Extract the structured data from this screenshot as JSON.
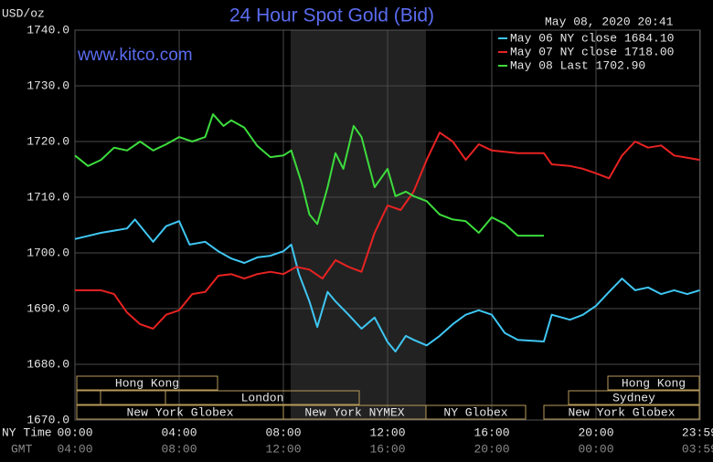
{
  "chart_data": {
    "type": "line",
    "title": "24 Hour Spot Gold (Bid)",
    "subtitle": "www.kitco.com",
    "y_label": "USD/oz",
    "timestamp": "May 08, 2020 20:41",
    "x_row_labels": [
      "NY Time",
      "GMT"
    ],
    "xlim": [
      0,
      24
    ],
    "xticks": [
      {
        "value": 0,
        "label": "00:00"
      },
      {
        "value": 4,
        "label": "04:00"
      },
      {
        "value": 8,
        "label": "08:00"
      },
      {
        "value": 12,
        "label": "12:00"
      },
      {
        "value": 16,
        "label": "16:00"
      },
      {
        "value": 20,
        "label": "20:00"
      },
      {
        "value": 23.98,
        "label": "23:59"
      }
    ],
    "gmt_tick_labels": [
      "04:00",
      "08:00",
      "12:00",
      "16:00",
      "20:00",
      "00:00",
      "03:59"
    ],
    "ylim": [
      1670,
      1740
    ],
    "yticks": [
      {
        "value": 1670,
        "label": "1670.0"
      },
      {
        "value": 1680,
        "label": "1680.0"
      },
      {
        "value": 1690,
        "label": "1690.0"
      },
      {
        "value": 1700,
        "label": "1700.0"
      },
      {
        "value": 1710,
        "label": "1710.0"
      },
      {
        "value": 1720,
        "label": "1720.0"
      },
      {
        "value": 1730,
        "label": "1730.0"
      },
      {
        "value": 1740,
        "label": "1740.0"
      }
    ],
    "grid": true,
    "legend": "top-right",
    "sessions": [
      "Hong Kong",
      "Hong Kong",
      "London",
      "Sydney",
      "New York Globex",
      "New York NYMEX",
      "NY Globex",
      "New York Globex"
    ],
    "series": [
      {
        "name": "May 06 NY close 1684.10",
        "color": "#3fc6f2",
        "x": [
          0,
          1,
          2,
          2.3,
          3,
          3.5,
          4,
          4.4,
          5,
          5.5,
          6,
          6.5,
          7,
          7.5,
          8,
          8.3,
          8.6,
          9,
          9.3,
          9.7,
          10,
          10.5,
          11,
          11.5,
          12,
          12.3,
          12.7,
          13,
          13.5,
          14,
          14.5,
          15,
          15.5,
          16,
          16.5,
          17,
          18,
          18.3,
          19,
          19.5,
          20,
          20.5,
          21,
          21.5,
          22,
          22.5,
          23,
          23.5,
          23.98
        ],
        "values": [
          1702.5,
          1703.6,
          1704.4,
          1706,
          1702,
          1704.8,
          1705.7,
          1701.5,
          1702,
          1700.3,
          1699,
          1698.2,
          1699.2,
          1699.5,
          1700.3,
          1701.5,
          1696.2,
          1691.3,
          1686.7,
          1693,
          1691.3,
          1688.9,
          1686.4,
          1688.4,
          1684,
          1682.3,
          1685.1,
          1684.4,
          1683.4,
          1685.1,
          1687.2,
          1688.9,
          1689.7,
          1688.9,
          1685.6,
          1684.4,
          1684.1,
          1688.9,
          1688,
          1688.9,
          1690.5,
          1693,
          1695.4,
          1693.3,
          1693.8,
          1692.6,
          1693.3,
          1692.6,
          1693.3
        ]
      },
      {
        "name": "May 07 NY close 1718.00",
        "color": "#e82222",
        "x": [
          0,
          1,
          1.5,
          2,
          2.5,
          3,
          3.5,
          4,
          4.5,
          5,
          5.5,
          6,
          6.5,
          7,
          7.5,
          8,
          8.5,
          9,
          9.5,
          10,
          10.5,
          11,
          11.5,
          12,
          12.5,
          13,
          13.5,
          14,
          14.5,
          15,
          15.5,
          16,
          17,
          18,
          18.3,
          19,
          19.5,
          20,
          20.5,
          21,
          21.5,
          22,
          22.5,
          23,
          23.98
        ],
        "values": [
          1693.3,
          1693.3,
          1692.6,
          1689.3,
          1687.2,
          1686.4,
          1688.9,
          1689.7,
          1692.6,
          1693,
          1695.9,
          1696.2,
          1695.4,
          1696.2,
          1696.6,
          1696.2,
          1697.5,
          1697,
          1695.4,
          1698.7,
          1697.5,
          1696.6,
          1703.6,
          1708.5,
          1707.7,
          1711,
          1716.7,
          1721.6,
          1720,
          1716.7,
          1719.5,
          1718.4,
          1717.9,
          1717.9,
          1715.9,
          1715.6,
          1715.1,
          1714.3,
          1713.4,
          1717.5,
          1720,
          1718.9,
          1719.3,
          1717.5,
          1716.7
        ]
      },
      {
        "name": "May 08 Last 1702.90",
        "color": "#3ddc3d",
        "x": [
          0,
          0.5,
          1,
          1.5,
          2,
          2.5,
          3,
          3.5,
          4,
          4.5,
          5,
          5.3,
          5.7,
          6,
          6.5,
          7,
          7.5,
          8,
          8.3,
          8.7,
          9,
          9.3,
          9.7,
          10,
          10.3,
          10.7,
          11,
          11.5,
          12,
          12.3,
          12.7,
          13,
          13.5,
          14,
          14.5,
          15,
          15.5,
          16,
          16.5,
          17,
          18
        ],
        "values": [
          1717.5,
          1715.6,
          1716.7,
          1718.9,
          1718.4,
          1720,
          1718.4,
          1719.5,
          1720.8,
          1720,
          1720.8,
          1724.9,
          1722.8,
          1723.8,
          1722.5,
          1719.2,
          1717.2,
          1717.5,
          1718.4,
          1712.6,
          1706.9,
          1705.2,
          1711.8,
          1717.9,
          1715.1,
          1722.8,
          1720.8,
          1711.8,
          1715.1,
          1710.2,
          1711,
          1710.2,
          1709.3,
          1706.9,
          1706,
          1705.7,
          1703.6,
          1706.4,
          1705.2,
          1703.1,
          1703.1
        ]
      }
    ]
  }
}
